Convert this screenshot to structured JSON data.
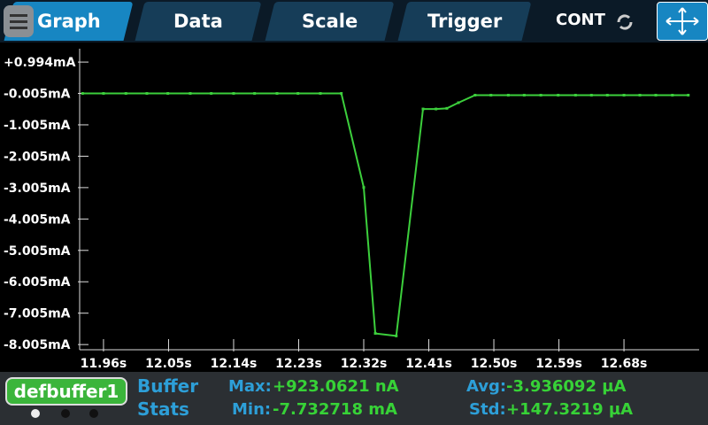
{
  "tabs": [
    "Graph",
    "Data",
    "Scale",
    "Trigger"
  ],
  "run_mode": "CONT",
  "chart_data": {
    "type": "line",
    "x": [
      11.931,
      11.96,
      11.991,
      12.02,
      12.049,
      12.08,
      12.109,
      12.14,
      12.169,
      12.2,
      12.229,
      12.26,
      12.289,
      12.32,
      12.336,
      12.365,
      12.402,
      12.42,
      12.435,
      12.451,
      12.474,
      12.496,
      12.52,
      12.542,
      12.565,
      12.589,
      12.613,
      12.635,
      12.657,
      12.68,
      12.702,
      12.724,
      12.747,
      12.769
    ],
    "series": [
      {
        "color": "#3ccf3c",
        "values": [
          -0.005,
          -0.005,
          -0.005,
          -0.005,
          -0.005,
          -0.005,
          -0.005,
          -0.005,
          -0.005,
          -0.005,
          -0.005,
          -0.005,
          -0.005,
          -3.0,
          -7.65,
          -7.73,
          -0.5,
          -0.5,
          -0.48,
          -0.3,
          -0.06,
          -0.06,
          -0.06,
          -0.06,
          -0.06,
          -0.06,
          -0.06,
          -0.06,
          -0.06,
          -0.06,
          -0.06,
          -0.06,
          -0.06,
          -0.06
        ]
      }
    ],
    "xlim": [
      11.927,
      12.784
    ],
    "ylim": [
      -8.17,
      1.42
    ],
    "xticks": [
      {
        "value": 11.96,
        "label": "11.96s"
      },
      {
        "value": 12.05,
        "label": "12.05s"
      },
      {
        "value": 12.14,
        "label": "12.14s"
      },
      {
        "value": 12.23,
        "label": "12.23s"
      },
      {
        "value": 12.32,
        "label": "12.32s"
      },
      {
        "value": 12.41,
        "label": "12.41s"
      },
      {
        "value": 12.5,
        "label": "12.50s"
      },
      {
        "value": 12.59,
        "label": "12.59s"
      },
      {
        "value": 12.68,
        "label": "12.68s"
      }
    ],
    "yticks": [
      {
        "value": 0.994,
        "label": "+0.994mA"
      },
      {
        "value": -0.005,
        "label": "-0.005mA"
      },
      {
        "value": -1.005,
        "label": "-1.005mA"
      },
      {
        "value": -2.005,
        "label": "-2.005mA"
      },
      {
        "value": -3.005,
        "label": "-3.005mA"
      },
      {
        "value": -4.005,
        "label": "-4.005mA"
      },
      {
        "value": -5.005,
        "label": "-5.005mA"
      },
      {
        "value": -6.005,
        "label": "-6.005mA"
      },
      {
        "value": -7.005,
        "label": "-7.005mA"
      },
      {
        "value": -8.005,
        "label": "-8.005mA"
      }
    ]
  },
  "buffer": {
    "name": "defbuffer1",
    "title": [
      "Buffer",
      "Stats"
    ],
    "stats": [
      {
        "label": "Max:",
        "value": "+923.0621 nA"
      },
      {
        "label": "Min:",
        "value": "-7.732718 mA"
      },
      {
        "label": "Avg:",
        "value": "-3.936092 µA"
      },
      {
        "label": "Std:",
        "value": "+147.3219 µA"
      }
    ]
  }
}
